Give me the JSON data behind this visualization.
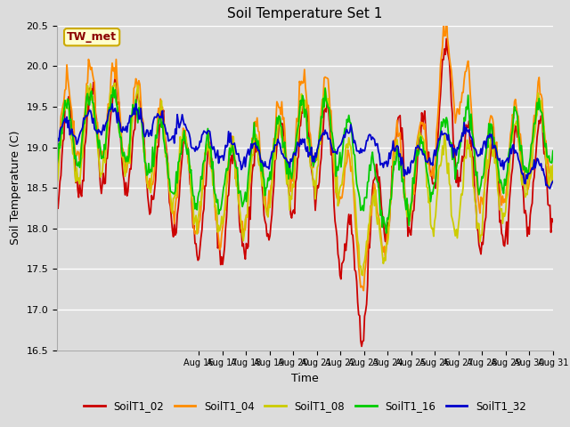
{
  "title": "Soil Temperature Set 1",
  "xlabel": "Time",
  "ylabel": "Soil Temperature (C)",
  "ylim": [
    16.5,
    20.5
  ],
  "background_color": "#dcdcdc",
  "plot_bg_color": "#dcdcdc",
  "annotation_text": "TW_met",
  "annotation_color": "#8b0000",
  "annotation_bg": "#ffffcc",
  "annotation_border": "#ccaa00",
  "x_tick_labels": [
    "Aug 16",
    "Aug 17",
    "Aug 18",
    "Aug 19",
    "Aug 20",
    "Aug 21",
    "Aug 22",
    "Aug 23",
    "Aug 24",
    "Aug 25",
    "Aug 26",
    "Aug 27",
    "Aug 28",
    "Aug 29",
    "Aug 30",
    "Aug 31"
  ],
  "yticks": [
    16.5,
    17.0,
    17.5,
    18.0,
    18.5,
    19.0,
    19.5,
    20.0,
    20.5
  ],
  "colors": {
    "SoilT1_02": "#cc0000",
    "SoilT1_04": "#ff8c00",
    "SoilT1_08": "#cccc00",
    "SoilT1_16": "#00cc00",
    "SoilT1_32": "#0000cc"
  },
  "lw": 1.3
}
